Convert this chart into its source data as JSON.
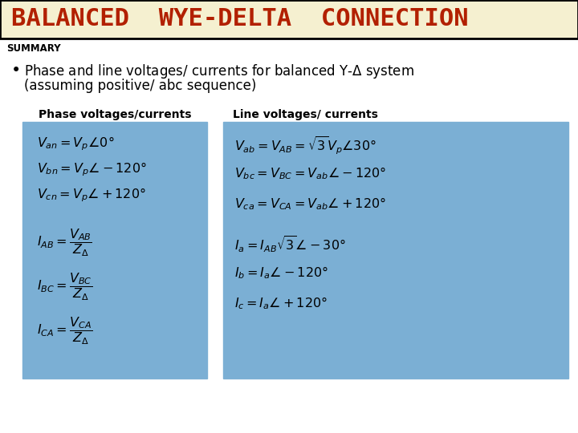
{
  "title": "BALANCED  WYE-DELTA  CONNECTION",
  "title_color": "#B22000",
  "title_bg": "#F5F0D0",
  "title_fontsize": 22,
  "summary_label": "SUMMARY",
  "bullet_line1": "Phase and line voltages/ currents for balanced Y-$\\Delta$ system",
  "bullet_line2": "(assuming positive/ abc sequence)",
  "col1_header": "Phase voltages/currents",
  "col2_header": "Line voltages/ currents",
  "box_color": "#7BAFD4",
  "bg_color": "#FFFFFF",
  "left_formulas": [
    "$V_{an} = V_p\\angle0°$",
    "$V_{bn} = V_p\\angle-120°$",
    "$V_{cn} = V_p\\angle+120°$",
    "$I_{AB} = \\dfrac{V_{AB}}{Z_{\\Delta}}$",
    "$I_{BC} = \\dfrac{V_{BC}}{Z_{\\Delta}}$",
    "$I_{CA} = \\dfrac{V_{CA}}{Z_{\\Delta}}$"
  ],
  "right_formulas": [
    "$V_{ab} = V_{AB} = \\sqrt{3}V_p\\angle30°$",
    "$V_{bc} = V_{BC} = V_{ab}\\angle-120°$",
    "$V_{ca} = V_{CA} = V_{ab}\\angle+120°$",
    "$I_a = I_{AB}\\sqrt{3}\\angle-30°$",
    "$I_b = I_a\\angle-120°$",
    "$I_c = I_a\\angle+120°$"
  ],
  "spacings_left": [
    32,
    32,
    52,
    55,
    55,
    0
  ],
  "spacings_right": [
    38,
    38,
    48,
    38,
    38,
    0
  ]
}
